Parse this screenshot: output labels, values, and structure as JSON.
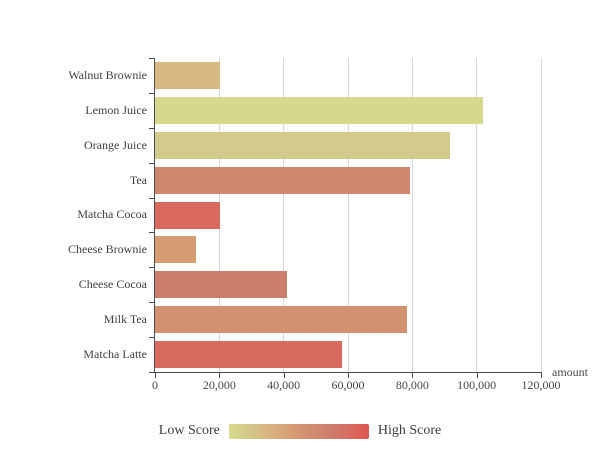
{
  "chart_data": {
    "type": "bar",
    "orientation": "horizontal",
    "categories": [
      "Walnut Brownie",
      "Lemon Juice",
      "Orange Juice",
      "Tea",
      "Matcha Cocoa",
      "Cheese Brownie",
      "Cheese Cocoa",
      "Milk Tea",
      "Matcha Latte"
    ],
    "values": [
      20112,
      101852,
      91852,
      79146,
      20145,
      12755,
      41032,
      78254,
      58212
    ],
    "bar_colors": [
      "#D8B981",
      "#D6D98B",
      "#D2CB8C",
      "#CE8870",
      "#DA6A60",
      "#D69C74",
      "#CD7D6B",
      "#D2926F",
      "#D96A60"
    ],
    "title": "",
    "xlabel": "amount",
    "ylabel": "",
    "xlim": [
      0,
      120000
    ],
    "x_ticks": [
      0,
      20000,
      40000,
      60000,
      80000,
      100000,
      120000
    ],
    "x_tick_labels": [
      "0",
      "20,000",
      "40,000",
      "60,000",
      "80,000",
      "100,000",
      "120,000"
    ],
    "grid": true,
    "legend": {
      "type": "gradient-colorbar",
      "position": "bottom-center",
      "low_label": "Low Score",
      "high_label": "High Score",
      "gradient_colors": [
        "#D7DA8B",
        "#D3CC8C",
        "#D8B981",
        "#D69C74",
        "#D2926F",
        "#CE8870",
        "#CD7D6B",
        "#D96A60",
        "#DC564E"
      ],
      "gradient_positions": [
        0,
        11,
        25,
        45,
        52,
        65,
        72,
        88,
        100
      ]
    }
  },
  "colors": {
    "background": "#FFFFFF",
    "axis_line": "#4A4C50",
    "grid_line": "#D6D9DE",
    "text": "#3D4045"
  }
}
